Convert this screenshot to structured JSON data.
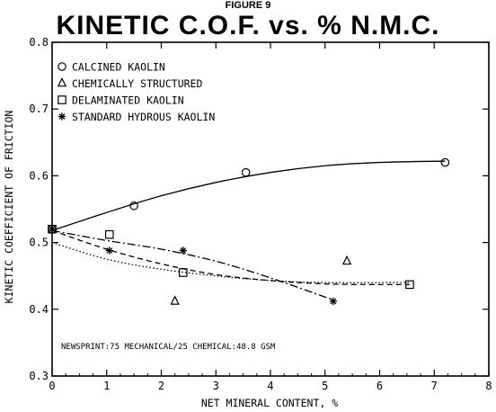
{
  "figure_label": "FIGURE 9",
  "chart_data": {
    "type": "scatter",
    "title": "KINETIC C.O.F. vs. % N.M.C.",
    "xlabel": "NET MINERAL CONTENT, %",
    "ylabel": "KINETIC COEFFICIENT OF FRICTION",
    "xlim": [
      0,
      8
    ],
    "ylim": [
      0.3,
      0.8
    ],
    "xticks": [
      "0",
      "1",
      "2",
      "3",
      "4",
      "5",
      "6",
      "7",
      "8"
    ],
    "yticks": [
      "0.3",
      "0.4",
      "0.5",
      "0.6",
      "0.7",
      "0.8"
    ],
    "grid": false,
    "legend_position": "top-left",
    "annotation": "NEWSPRINT:75 MECHANICAL/25 CHEMICAL:48.8 GSM",
    "series": [
      {
        "name": "CALCINED KAOLIN",
        "marker": "circle",
        "line_style": "solid",
        "points": [
          [
            0,
            0.52
          ],
          [
            1.5,
            0.555
          ],
          [
            3.55,
            0.605
          ],
          [
            7.2,
            0.62
          ]
        ],
        "fit": [
          [
            0,
            0.518
          ],
          [
            1,
            0.545
          ],
          [
            2,
            0.57
          ],
          [
            3,
            0.59
          ],
          [
            4,
            0.605
          ],
          [
            5,
            0.615
          ],
          [
            6,
            0.62
          ],
          [
            7.2,
            0.622
          ]
        ]
      },
      {
        "name": "CHEMICALLY STRUCTURED",
        "marker": "triangle",
        "line_style": "none",
        "points": [
          [
            2.25,
            0.412
          ],
          [
            5.4,
            0.472
          ]
        ],
        "fit": []
      },
      {
        "name": "DELAMINATED KAOLIN",
        "marker": "square",
        "line_style": "dashed",
        "points": [
          [
            0,
            0.52
          ],
          [
            1.05,
            0.512
          ],
          [
            2.4,
            0.455
          ],
          [
            6.55,
            0.437
          ]
        ],
        "fit": [
          [
            0,
            0.518
          ],
          [
            1,
            0.49
          ],
          [
            2,
            0.468
          ],
          [
            3,
            0.452
          ],
          [
            4,
            0.443
          ],
          [
            5,
            0.438
          ],
          [
            6,
            0.437
          ],
          [
            6.55,
            0.437
          ]
        ]
      },
      {
        "name": "STANDARD HYDROUS KAOLIN",
        "marker": "asterisk",
        "line_style": "dashdot",
        "points": [
          [
            0,
            0.52
          ],
          [
            1.05,
            0.488
          ],
          [
            2.4,
            0.488
          ],
          [
            5.15,
            0.412
          ]
        ],
        "fit": [
          [
            0,
            0.518
          ],
          [
            1,
            0.503
          ],
          [
            2,
            0.49
          ],
          [
            3,
            0.472
          ],
          [
            4,
            0.447
          ],
          [
            5.15,
            0.414
          ]
        ]
      }
    ],
    "extra_lines": [
      {
        "line_style": "dotted",
        "points": [
          [
            0,
            0.5
          ],
          [
            1,
            0.475
          ],
          [
            2,
            0.46
          ],
          [
            3,
            0.45
          ],
          [
            4,
            0.443
          ],
          [
            5,
            0.44
          ],
          [
            6.55,
            0.44
          ]
        ]
      }
    ]
  }
}
